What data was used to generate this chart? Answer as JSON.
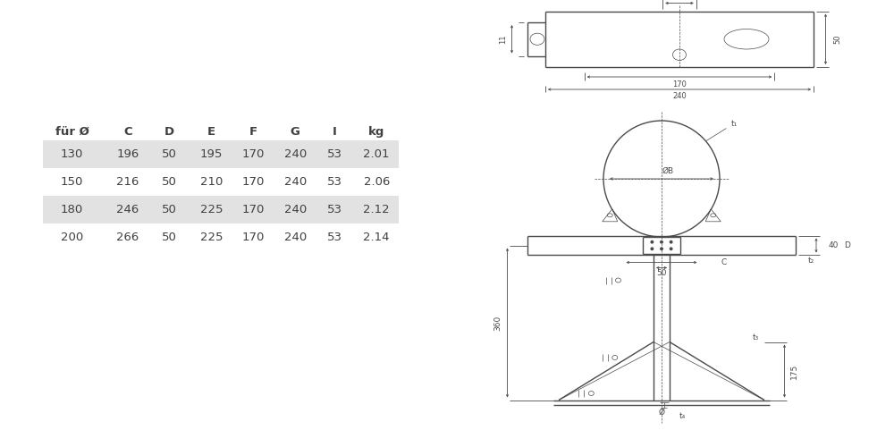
{
  "table_headers": [
    "für Ø",
    "C",
    "D",
    "E",
    "F",
    "G",
    "I",
    "kg"
  ],
  "table_rows": [
    [
      130,
      196,
      50,
      195,
      170,
      240,
      53,
      "2.01"
    ],
    [
      150,
      216,
      50,
      210,
      170,
      240,
      53,
      "2.06"
    ],
    [
      180,
      246,
      50,
      225,
      170,
      240,
      53,
      "2.12"
    ],
    [
      200,
      266,
      50,
      225,
      170,
      240,
      53,
      "2.14"
    ]
  ],
  "shaded_rows": [
    0,
    2
  ],
  "shade_color": "#e2e2e2",
  "text_color": "#404040",
  "line_color": "#4a4a4a",
  "bg_color": "#ffffff",
  "dim_color": "#4a4a4a"
}
